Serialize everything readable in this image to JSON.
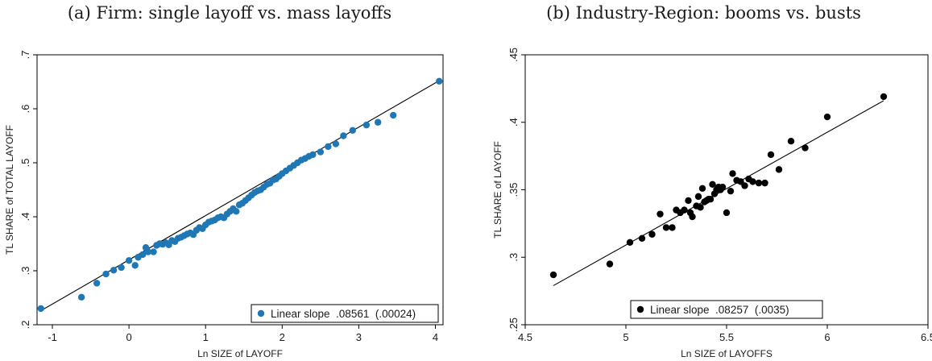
{
  "panels": [
    {
      "title": "(a) Firm: single layoff vs. mass layoffs"
    },
    {
      "title": "(b) Industry-Region: booms vs. busts"
    }
  ],
  "chart_data": [
    {
      "type": "scatter",
      "title": "(a) Firm: single layoff vs. mass layoffs",
      "xlabel": "Ln SIZE of LAYOFF",
      "ylabel": "TL SHARE of TOTAL LAYOFF",
      "xlim": [
        -1.2,
        4.1
      ],
      "ylim": [
        0.2,
        0.7
      ],
      "xticks": [
        {
          "v": -1,
          "label": "-1"
        },
        {
          "v": 0,
          "label": "0"
        },
        {
          "v": 1,
          "label": "1"
        },
        {
          "v": 2,
          "label": "2"
        },
        {
          "v": 3,
          "label": "3"
        },
        {
          "v": 4,
          "label": "4"
        }
      ],
      "yticks": [
        {
          "v": 0.2,
          "label": ".2"
        },
        {
          "v": 0.3,
          "label": ".3"
        },
        {
          "v": 0.4,
          "label": ".4"
        },
        {
          "v": 0.5,
          "label": ".5"
        },
        {
          "v": 0.6,
          "label": ".6"
        },
        {
          "v": 0.7,
          "label": ".7"
        }
      ],
      "grid": false,
      "point_color": "#1f77b4",
      "legend": {
        "label": "Linear slope  .08561  (.00024)",
        "position": "bottom-right"
      },
      "fit_line": {
        "x": [
          -1.15,
          4.05
        ],
        "y": [
          0.226,
          0.652
        ]
      },
      "series": [
        {
          "x": [
            -1.15,
            -0.62,
            -0.42,
            -0.3,
            -0.2,
            -0.1,
            0.0,
            0.08,
            0.12,
            0.18,
            0.22,
            0.25,
            0.32,
            0.36,
            0.4,
            0.44,
            0.48,
            0.52,
            0.56,
            0.6,
            0.64,
            0.68,
            0.72,
            0.76,
            0.8,
            0.84,
            0.88,
            0.92,
            0.96,
            1.0,
            1.04,
            1.08,
            1.12,
            1.16,
            1.2,
            1.24,
            1.28,
            1.32,
            1.36,
            1.4,
            1.44,
            1.48,
            1.52,
            1.56,
            1.6,
            1.64,
            1.68,
            1.72,
            1.76,
            1.8,
            1.84,
            1.88,
            1.92,
            1.96,
            2.0,
            2.05,
            2.1,
            2.15,
            2.2,
            2.25,
            2.3,
            2.35,
            2.4,
            2.5,
            2.6,
            2.7,
            2.8,
            2.92,
            3.1,
            3.25,
            3.45,
            4.05
          ],
          "y": [
            0.23,
            0.251,
            0.277,
            0.294,
            0.301,
            0.306,
            0.319,
            0.31,
            0.325,
            0.33,
            0.343,
            0.335,
            0.335,
            0.347,
            0.35,
            0.349,
            0.352,
            0.348,
            0.356,
            0.354,
            0.36,
            0.362,
            0.365,
            0.368,
            0.37,
            0.367,
            0.375,
            0.38,
            0.378,
            0.385,
            0.39,
            0.392,
            0.394,
            0.398,
            0.4,
            0.398,
            0.405,
            0.41,
            0.415,
            0.41,
            0.422,
            0.425,
            0.43,
            0.435,
            0.44,
            0.445,
            0.448,
            0.45,
            0.455,
            0.46,
            0.462,
            0.468,
            0.47,
            0.475,
            0.48,
            0.485,
            0.49,
            0.495,
            0.5,
            0.505,
            0.508,
            0.512,
            0.515,
            0.52,
            0.53,
            0.535,
            0.55,
            0.56,
            0.57,
            0.575,
            0.588,
            0.651
          ]
        }
      ]
    },
    {
      "type": "scatter",
      "title": "(b) Industry-Region: booms vs. busts",
      "xlabel": "Ln SIZE of LAYOFFS",
      "ylabel": "TL SHARE of LAYOFF",
      "xlim": [
        4.5,
        6.5
      ],
      "ylim": [
        0.25,
        0.45
      ],
      "xticks": [
        {
          "v": 4.5,
          "label": "4.5"
        },
        {
          "v": 5,
          "label": "5"
        },
        {
          "v": 5.5,
          "label": "5.5"
        },
        {
          "v": 6,
          "label": "6"
        },
        {
          "v": 6.5,
          "label": "6.5"
        }
      ],
      "yticks": [
        {
          "v": 0.25,
          "label": ".25"
        },
        {
          "v": 0.3,
          "label": ".3"
        },
        {
          "v": 0.35,
          "label": ".35"
        },
        {
          "v": 0.4,
          "label": ".4"
        },
        {
          "v": 0.45,
          "label": ".45"
        }
      ],
      "grid": false,
      "point_color": "#000000",
      "legend": {
        "label": "Linear slope  .08257  (.0035)",
        "position": "bottom-center"
      },
      "fit_line": {
        "x": [
          4.64,
          6.28
        ],
        "y": [
          0.279,
          0.416
        ]
      },
      "series": [
        {
          "x": [
            4.64,
            4.92,
            5.02,
            5.08,
            5.13,
            5.17,
            5.2,
            5.23,
            5.25,
            5.27,
            5.29,
            5.31,
            5.32,
            5.33,
            5.35,
            5.36,
            5.37,
            5.38,
            5.39,
            5.4,
            5.41,
            5.42,
            5.43,
            5.44,
            5.45,
            5.46,
            5.47,
            5.48,
            5.5,
            5.52,
            5.53,
            5.55,
            5.57,
            5.59,
            5.61,
            5.63,
            5.66,
            5.69,
            5.72,
            5.76,
            5.82,
            5.89,
            6.0,
            6.28
          ],
          "y": [
            0.287,
            0.295,
            0.311,
            0.314,
            0.317,
            0.332,
            0.322,
            0.322,
            0.335,
            0.333,
            0.335,
            0.342,
            0.333,
            0.33,
            0.338,
            0.345,
            0.337,
            0.351,
            0.341,
            0.342,
            0.343,
            0.343,
            0.354,
            0.347,
            0.35,
            0.352,
            0.35,
            0.352,
            0.333,
            0.349,
            0.362,
            0.357,
            0.356,
            0.353,
            0.358,
            0.356,
            0.355,
            0.355,
            0.376,
            0.365,
            0.386,
            0.381,
            0.404,
            0.419
          ]
        }
      ]
    }
  ]
}
